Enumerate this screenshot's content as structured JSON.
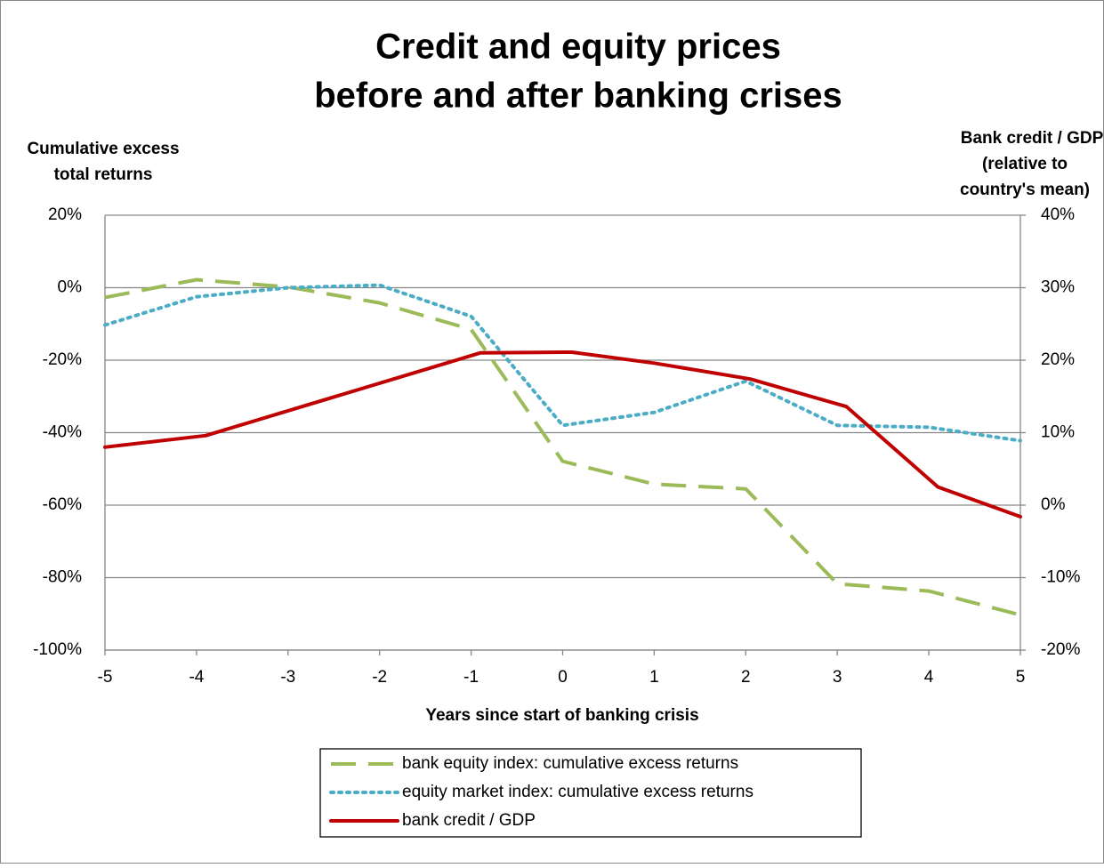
{
  "chart_data": {
    "type": "line",
    "title": [
      "Credit and equity prices",
      "before and after banking crises"
    ],
    "y_label": [
      "Cumulative excess",
      "total returns"
    ],
    "y2_label": [
      "Bank credit / GDP",
      "(relative to",
      "country's mean)"
    ],
    "x_label": "Years since start of banking crisis",
    "xlim": [
      -5,
      5
    ],
    "xticks": [
      -5,
      -4,
      -3,
      -2,
      -1,
      0,
      1,
      2,
      3,
      4,
      5
    ],
    "ylim": [
      -100,
      20
    ],
    "yticks": [
      {
        "value": -100,
        "label": "-100%"
      },
      {
        "value": -80,
        "label": "-80%"
      },
      {
        "value": -60,
        "label": "-60%"
      },
      {
        "value": -40,
        "label": "-40%"
      },
      {
        "value": -20,
        "label": "-20%"
      },
      {
        "value": 0,
        "label": "0%"
      },
      {
        "value": 20,
        "label": "20%"
      }
    ],
    "y2lim": [
      -20,
      40
    ],
    "y2ticks": [
      {
        "value": -20,
        "label": "-20%"
      },
      {
        "value": -10,
        "label": "-10%"
      },
      {
        "value": 0,
        "label": "0%"
      },
      {
        "value": 10,
        "label": "10%"
      },
      {
        "value": 20,
        "label": "20%"
      },
      {
        "value": 30,
        "label": "30%"
      },
      {
        "value": 40,
        "label": "40%"
      }
    ],
    "grid": true,
    "series": [
      {
        "name": "bank equity index: cumulative excess returns",
        "color": "#9bbb59",
        "style": "dashed",
        "x": [
          -5,
          -4,
          -3,
          -2,
          -1,
          0,
          1,
          2,
          3,
          4,
          5
        ],
        "values": [
          -2.7,
          2.2,
          0.2,
          -4.2,
          -11.5,
          -47.9,
          -54.2,
          -55.5,
          -81.7,
          -83.7,
          -90.3
        ]
      },
      {
        "name": "equity market index: cumulative excess returns",
        "color": "#4bacc6",
        "style": "dotted",
        "x": [
          -5,
          -4,
          -3,
          -2,
          -1,
          0,
          1,
          2,
          3,
          4,
          5
        ],
        "values": [
          -10.3,
          -2.5,
          0,
          0.7,
          -7.9,
          -38,
          -34.4,
          -25.8,
          -38,
          -38.5,
          -42.2
        ]
      },
      {
        "name": "bank credit / GDP",
        "color": "#c00000",
        "style": "solid",
        "axis": "y2",
        "x": [
          -5,
          -3.9,
          -0.9,
          0.1,
          1,
          2.05,
          3.1,
          4.1,
          5
        ],
        "values": [
          8,
          9.6,
          21,
          21.1,
          19.6,
          17.4,
          13.6,
          2.5,
          -1.6
        ]
      }
    ]
  }
}
